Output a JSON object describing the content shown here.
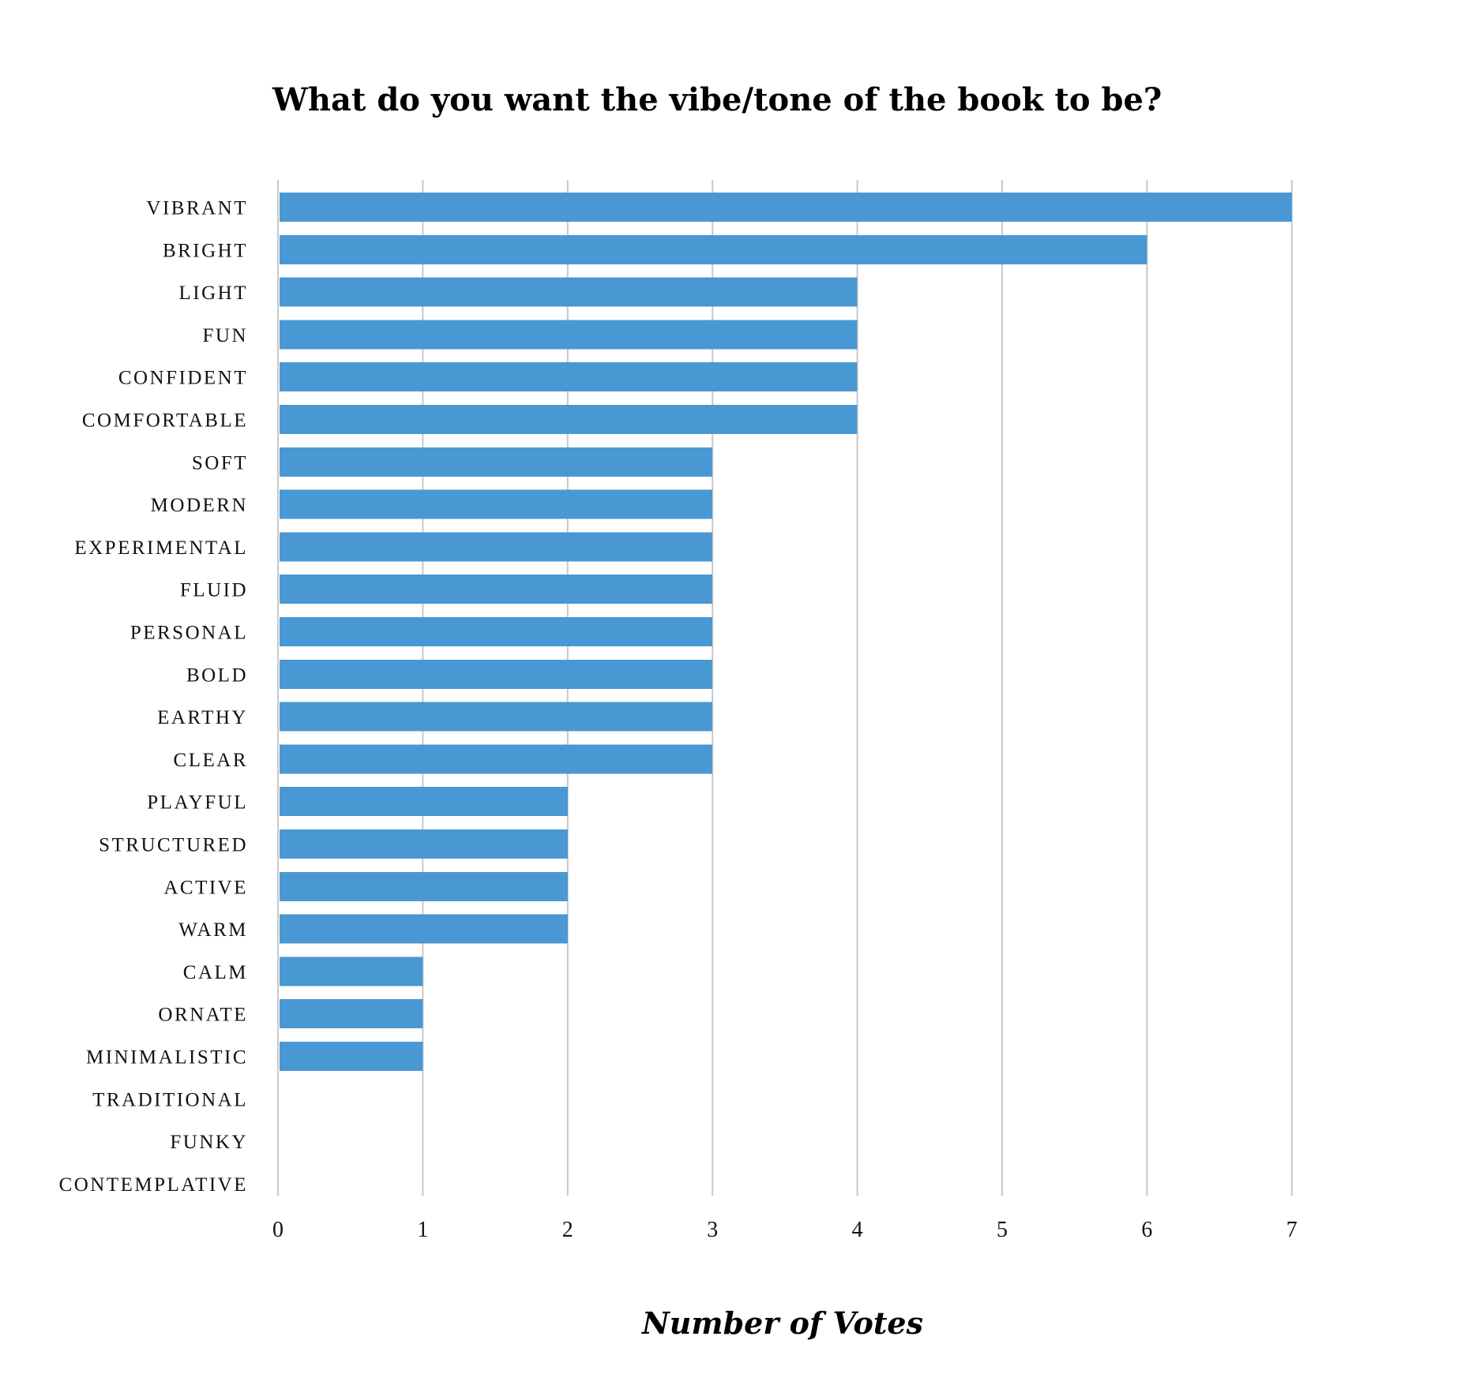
{
  "chart_data": {
    "type": "bar",
    "orientation": "horizontal",
    "title": "What do you want the vibe/tone of the book to be?",
    "xlabel": "Number of Votes",
    "ylabel": "",
    "categories": [
      "VIBRANT",
      "BRIGHT",
      "LIGHT",
      "FUN",
      "CONFIDENT",
      "COMFORTABLE",
      "SOFT",
      "MODERN",
      "EXPERIMENTAL",
      "FLUID",
      "PERSONAL",
      "BOLD",
      "EARTHY",
      "CLEAR",
      "PLAYFUL",
      "STRUCTURED",
      "ACTIVE",
      "WARM",
      "CALM",
      "ORNATE",
      "MINIMALISTIC",
      "TRADITIONAL",
      "FUNKY",
      "CONTEMPLATIVE"
    ],
    "values": [
      7,
      6,
      4,
      4,
      4,
      4,
      3,
      3,
      3,
      3,
      3,
      3,
      3,
      3,
      2,
      2,
      2,
      2,
      1,
      1,
      1,
      0,
      0,
      0
    ],
    "xlim": [
      0,
      7
    ],
    "xticks": [
      "0",
      "1",
      "2",
      "3",
      "4",
      "5",
      "6",
      "7"
    ],
    "grid": "vertical",
    "legend": "none",
    "bar_color": "#4a98d3"
  }
}
